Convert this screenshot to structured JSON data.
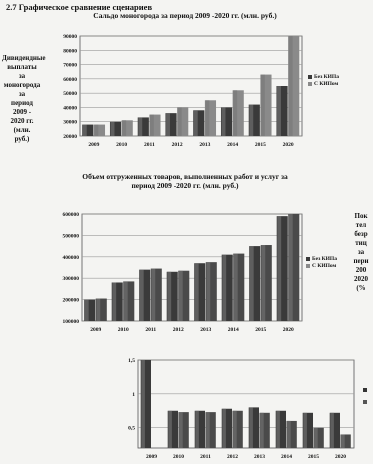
{
  "page": {
    "heading": "2.7 Графическое сравнение сценариев"
  },
  "chart_data": [
    {
      "type": "bar",
      "title": "Сальдо моногорода за период 2009 -2020 гг. (млн. руб.)",
      "side_label": [
        "Дивидендные",
        "выплаты",
        "за",
        "моногорода",
        "за",
        "период",
        "2009 -",
        "2020 гг.",
        "(млн.",
        "руб.)"
      ],
      "categories": [
        "2009",
        "2010",
        "2011",
        "2012",
        "2013",
        "2014",
        "2015",
        "2020"
      ],
      "series": [
        {
          "name": "Без КИПа",
          "values": [
            28000,
            30000,
            33000,
            36000,
            38000,
            40000,
            42000,
            55000
          ]
        },
        {
          "name": "С КИПом",
          "values": [
            28000,
            31000,
            35000,
            40000,
            45000,
            52000,
            63000,
            92000
          ]
        }
      ],
      "yticks": [
        "20000",
        "30000",
        "40000",
        "50000",
        "60000",
        "70000",
        "80000",
        "90000"
      ],
      "ylim": [
        20000,
        90000
      ],
      "legend_position": "right",
      "grid": true,
      "colors": {
        "bar": "#3a3a3a",
        "bar_light": "#8a8a8a",
        "grid": "#9a9a9a"
      }
    },
    {
      "type": "bar",
      "title": "Объем отгруженных товаров, выполненных работ и услуг за период 2009 -2020 гг. (млн. руб.)",
      "side_label": [
        "Пок",
        "тел",
        "безр",
        "тиц",
        "за",
        "пери",
        "200",
        "2020",
        "(%"
      ],
      "categories": [
        "2009",
        "2010",
        "2011",
        "2012",
        "2013",
        "2014",
        "2015",
        "2020"
      ],
      "series": [
        {
          "name": "Без КИПа",
          "values": [
            200000,
            280000,
            340000,
            330000,
            370000,
            410000,
            450000,
            590000
          ]
        },
        {
          "name": "С КИПом",
          "values": [
            205000,
            285000,
            345000,
            335000,
            375000,
            415000,
            455000,
            600000
          ]
        }
      ],
      "yticks": [
        "100000",
        "200000",
        "300000",
        "400000",
        "500000",
        "600000"
      ],
      "ylim": [
        100000,
        600000
      ],
      "legend_position": "right",
      "grid": true,
      "colors": {
        "bar": "#3a3a3a",
        "bar_light": "#8a8a8a",
        "grid": "#9a9a9a"
      }
    },
    {
      "type": "bar",
      "title": "",
      "categories": [
        "2009",
        "2010",
        "2011",
        "2012",
        "2013",
        "2014",
        "2015",
        "2020"
      ],
      "series": [
        {
          "values": [
            1.5,
            0.75,
            0.75,
            0.78,
            0.8,
            0.75,
            0.72,
            0.72
          ]
        },
        {
          "values": [
            null,
            0.73,
            0.73,
            0.75,
            0.72,
            0.6,
            0.5,
            0.4
          ]
        }
      ],
      "yticks": [
        "0,5",
        "1",
        "1,5"
      ],
      "ylim": [
        0.2,
        1.5
      ],
      "grid": true,
      "colors": {
        "bar": "#3a3a3a",
        "bar_light": "#8a8a8a",
        "grid": "#9a9a9a"
      }
    }
  ]
}
